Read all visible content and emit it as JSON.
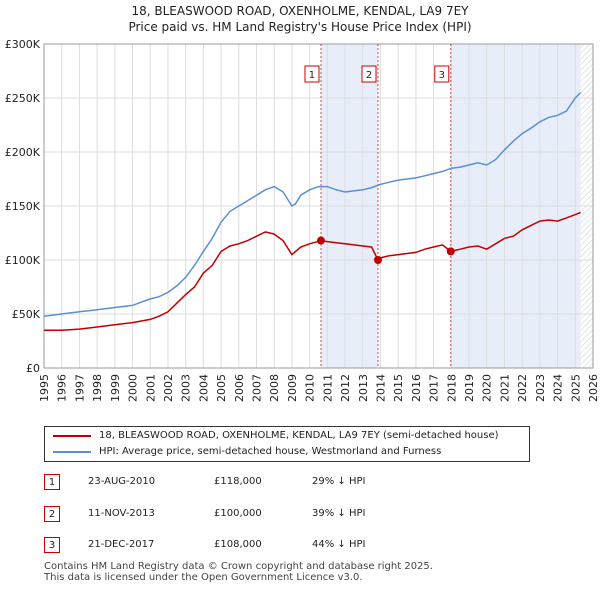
{
  "header": {
    "title_line1": "18, BLEASWOOD ROAD, OXENHOLME, KENDAL, LA9 7EY",
    "title_line2": "Price paid vs. HM Land Registry's House Price Index (HPI)"
  },
  "colors": {
    "hpi": "#5b8fd4",
    "price": "#c00000",
    "shade": "#e8eef9",
    "grid": "#dddddd"
  },
  "chart_data": {
    "type": "line",
    "title": "Price paid vs. HM Land Registry's House Price Index (HPI)",
    "xlim": [
      1995,
      2026
    ],
    "ylim": [
      0,
      300000
    ],
    "y_ticks": [
      0,
      50000,
      100000,
      150000,
      200000,
      250000,
      300000
    ],
    "y_tick_labels": [
      "£0",
      "£50K",
      "£100K",
      "£150K",
      "£200K",
      "£250K",
      "£300K"
    ],
    "x_ticks": [
      1995,
      1996,
      1997,
      1998,
      1999,
      2000,
      2001,
      2002,
      2003,
      2004,
      2005,
      2006,
      2007,
      2008,
      2009,
      2010,
      2011,
      2012,
      2013,
      2014,
      2015,
      2016,
      2017,
      2018,
      2019,
      2020,
      2021,
      2022,
      2023,
      2024,
      2025,
      2026
    ],
    "shaded_periods": [
      [
        2010.64,
        2013.86
      ],
      [
        2017.97,
        2025.3
      ]
    ],
    "series": [
      {
        "name": "18, BLEASWOOD ROAD, OXENHOLME, KENDAL, LA9 7EY (semi-detached house)",
        "x": [
          1995,
          1996,
          1997,
          1998,
          1999,
          2000,
          2001,
          2001.5,
          2002,
          2002.5,
          2003,
          2003.5,
          2004,
          2004.5,
          2005,
          2005.5,
          2006,
          2006.5,
          2007,
          2007.5,
          2008,
          2008.5,
          2009,
          2009.5,
          2010,
          2010.64,
          2011,
          2011.5,
          2012,
          2012.5,
          2013,
          2013.5,
          2013.86,
          2014,
          2014.5,
          2015,
          2015.5,
          2016,
          2016.5,
          2017,
          2017.5,
          2017.97,
          2018.5,
          2019,
          2019.5,
          2020,
          2020.5,
          2021,
          2021.5,
          2022,
          2022.5,
          2023,
          2023.5,
          2024,
          2024.5,
          2025,
          2025.3
        ],
        "y": [
          35000,
          35000,
          36000,
          38000,
          40000,
          42000,
          45000,
          48000,
          52000,
          60000,
          68000,
          75000,
          88000,
          95000,
          108000,
          113000,
          115000,
          118000,
          122000,
          126000,
          124000,
          118000,
          105000,
          112000,
          115000,
          118000,
          117000,
          116000,
          115000,
          114000,
          113000,
          112000,
          100000,
          102000,
          104000,
          105000,
          106000,
          107000,
          110000,
          112000,
          114000,
          108000,
          110000,
          112000,
          113000,
          110000,
          115000,
          120000,
          122000,
          128000,
          132000,
          136000,
          137000,
          136000,
          139000,
          142000,
          144000
        ]
      },
      {
        "name": "HPI: Average price, semi-detached house, Westmorland and Furness",
        "x": [
          1995,
          1995.5,
          1996,
          1997,
          1998,
          1999,
          2000,
          2000.5,
          2001,
          2001.5,
          2002,
          2002.5,
          2003,
          2003.5,
          2004,
          2004.5,
          2005,
          2005.5,
          2006,
          2006.5,
          2007,
          2007.5,
          2008,
          2008.5,
          2009,
          2009.2,
          2009.5,
          2010,
          2010.5,
          2011,
          2011.5,
          2012,
          2012.5,
          2013,
          2013.5,
          2014,
          2014.5,
          2015,
          2015.5,
          2016,
          2016.5,
          2017,
          2017.5,
          2018,
          2018.5,
          2019,
          2019.5,
          2020,
          2020.5,
          2021,
          2021.5,
          2022,
          2022.5,
          2023,
          2023.5,
          2024,
          2024.5,
          2025,
          2025.3
        ],
        "y": [
          48000,
          49000,
          50000,
          52000,
          54000,
          56000,
          58000,
          61000,
          64000,
          66000,
          70000,
          76000,
          84000,
          95000,
          108000,
          120000,
          135000,
          145000,
          150000,
          155000,
          160000,
          165000,
          168000,
          163000,
          150000,
          152000,
          160000,
          165000,
          168000,
          168000,
          165000,
          163000,
          164000,
          165000,
          167000,
          170000,
          172000,
          174000,
          175000,
          176000,
          178000,
          180000,
          182000,
          185000,
          186000,
          188000,
          190000,
          188000,
          193000,
          202000,
          210000,
          217000,
          222000,
          228000,
          232000,
          234000,
          238000,
          250000,
          255000
        ]
      }
    ],
    "markers": [
      {
        "label": "1",
        "x": 2010.64,
        "y": 118000
      },
      {
        "label": "2",
        "x": 2013.86,
        "y": 100000
      },
      {
        "label": "3",
        "x": 2017.97,
        "y": 108000
      }
    ]
  },
  "legend": {
    "price_label": "18, BLEASWOOD ROAD, OXENHOLME, KENDAL, LA9 7EY (semi-detached house)",
    "hpi_label": "HPI: Average price, semi-detached house, Westmorland and Furness"
  },
  "transactions": [
    {
      "num": "1",
      "date": "23-AUG-2010",
      "price": "£118,000",
      "diff": "29% ↓ HPI"
    },
    {
      "num": "2",
      "date": "11-NOV-2013",
      "price": "£100,000",
      "diff": "39% ↓ HPI"
    },
    {
      "num": "3",
      "date": "21-DEC-2017",
      "price": "£108,000",
      "diff": "44% ↓ HPI"
    }
  ],
  "footer": {
    "line1": "Contains HM Land Registry data © Crown copyright and database right 2025.",
    "line2": "This data is licensed under the Open Government Licence v3.0."
  }
}
